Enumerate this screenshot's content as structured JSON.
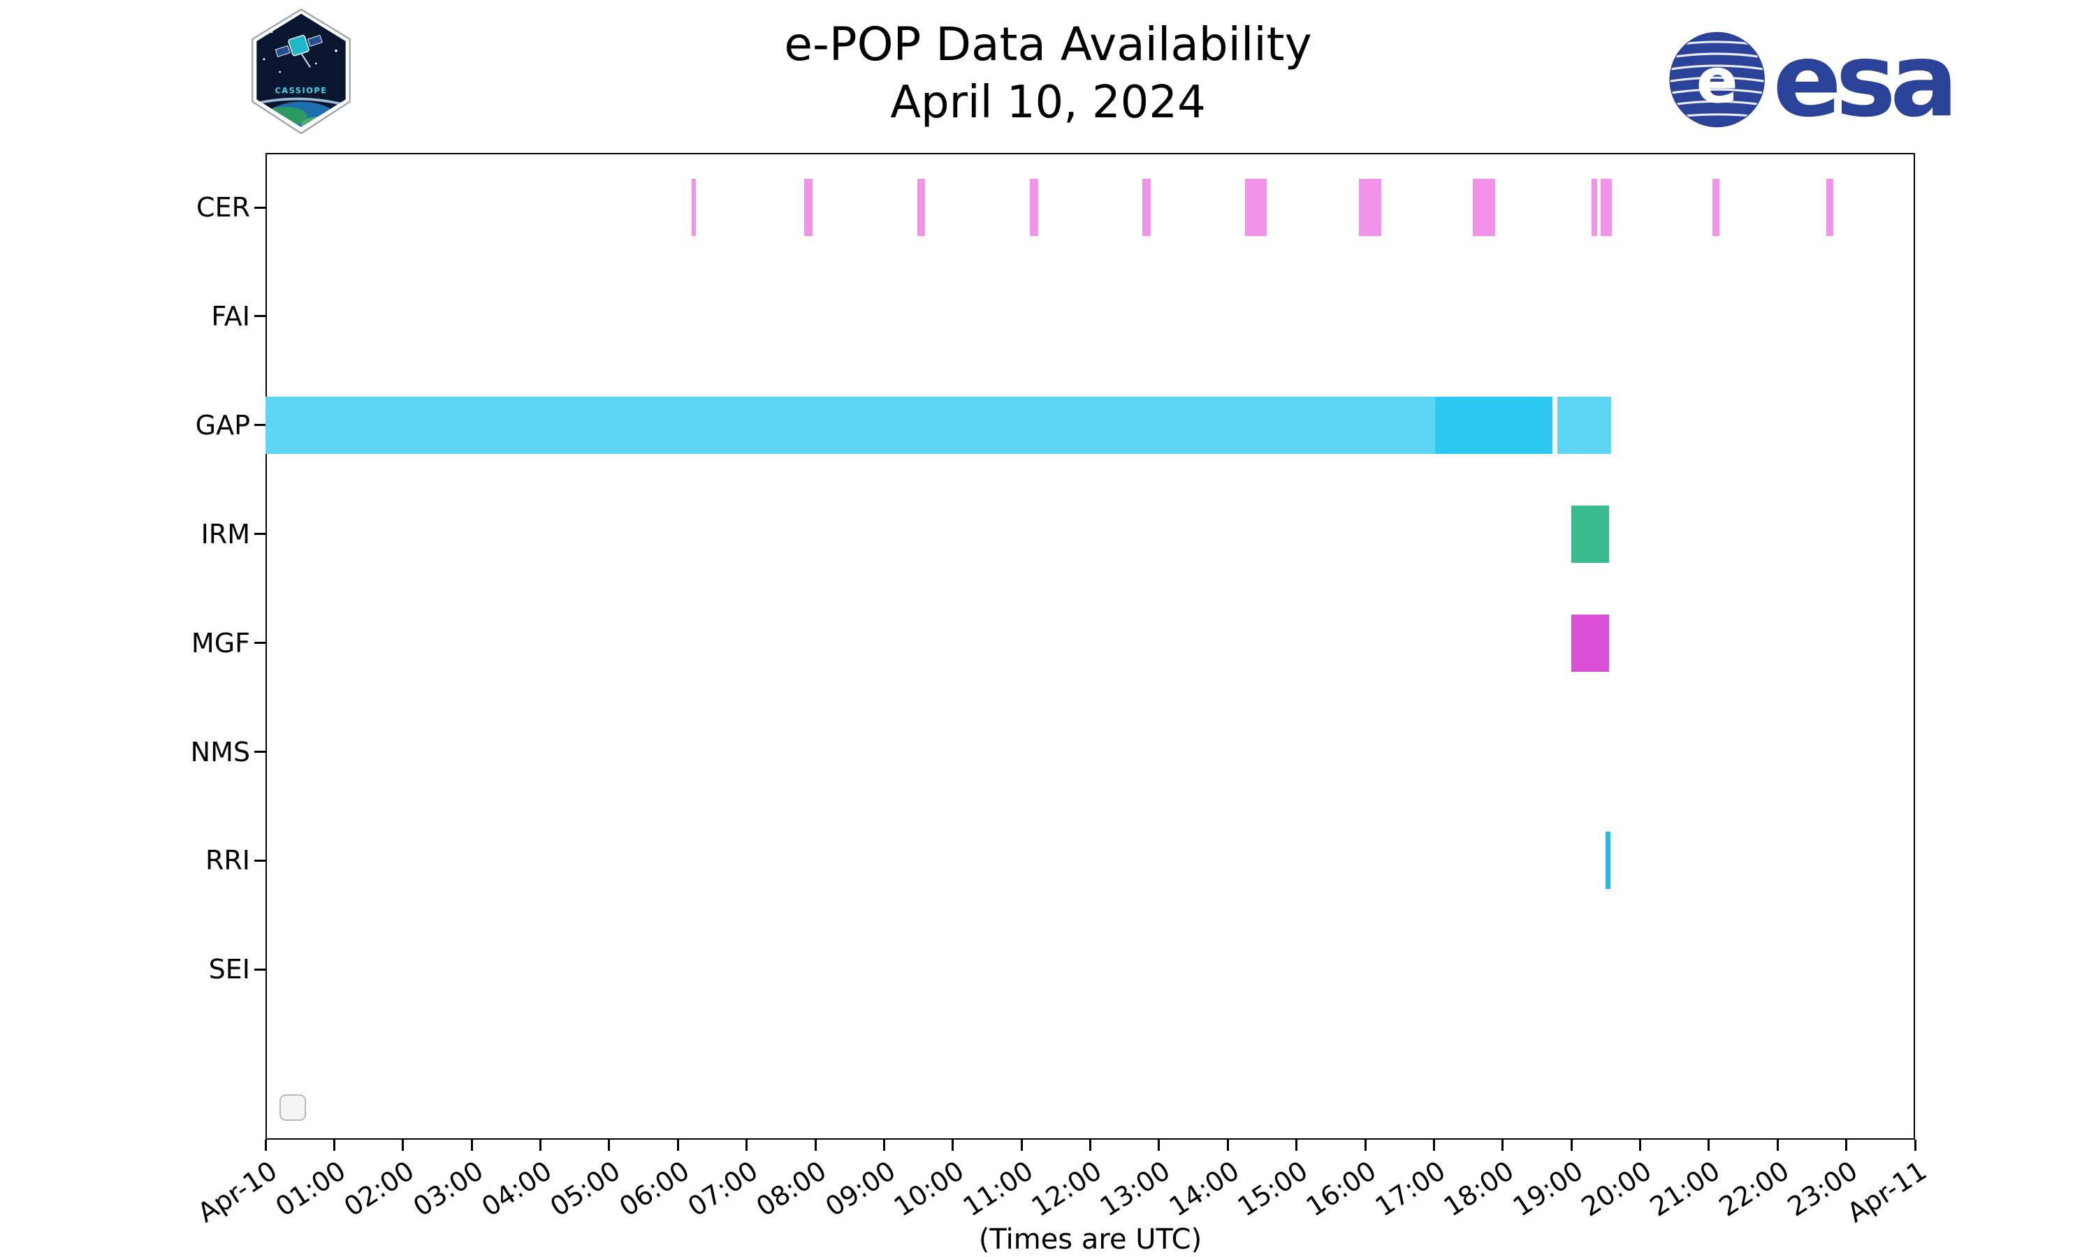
{
  "logos": {
    "cassiope_text": "CASSIOPE",
    "esa_text": "esa",
    "esa_emblem_letter": "e"
  },
  "chart_data": {
    "type": "timeline",
    "title": "e-POP Data Availability",
    "subtitle": "April 10, 2024",
    "xlabel": "(Times are UTC)",
    "x_axis": {
      "start_label": "Apr-10",
      "end_label": "Apr-11",
      "hours": 24,
      "tick_labels": [
        "Apr-10",
        "01:00",
        "02:00",
        "03:00",
        "04:00",
        "05:00",
        "06:00",
        "07:00",
        "08:00",
        "09:00",
        "10:00",
        "11:00",
        "12:00",
        "13:00",
        "14:00",
        "15:00",
        "16:00",
        "17:00",
        "18:00",
        "19:00",
        "20:00",
        "21:00",
        "22:00",
        "23:00",
        "Apr-11"
      ]
    },
    "rows": [
      "CER",
      "FAI",
      "GAP",
      "IRM",
      "MGF",
      "NMS",
      "RRI",
      "SEI"
    ],
    "colors": {
      "CER": "#f193e9",
      "GAP_light": "#5dd5f4",
      "GAP_dark": "#2cc8f0",
      "IRM": "#3abb8d",
      "MGF": "#d94fd6",
      "RRI": "#29b7e8"
    },
    "series": [
      {
        "row": "CER",
        "color_key": "CER",
        "intervals_hours": [
          [
            6.2,
            6.26
          ],
          [
            7.84,
            7.96
          ],
          [
            9.48,
            9.6
          ],
          [
            11.12,
            11.24
          ],
          [
            12.76,
            12.88
          ],
          [
            14.25,
            14.57
          ],
          [
            15.91,
            16.23
          ],
          [
            17.57,
            17.89
          ],
          [
            19.29,
            19.37
          ],
          [
            19.43,
            19.59
          ],
          [
            21.05,
            21.15
          ],
          [
            22.71,
            22.81
          ]
        ]
      },
      {
        "row": "FAI",
        "color_key": "CER",
        "intervals_hours": []
      },
      {
        "row": "GAP",
        "color_key": "GAP_light",
        "intervals_hours": [
          [
            0.0,
            17.02
          ],
          [
            18.8,
            19.58
          ]
        ]
      },
      {
        "row": "GAP",
        "color_key": "GAP_dark",
        "intervals_hours": [
          [
            17.02,
            18.72
          ]
        ]
      },
      {
        "row": "IRM",
        "color_key": "IRM",
        "intervals_hours": [
          [
            19.0,
            19.55
          ]
        ]
      },
      {
        "row": "MGF",
        "color_key": "MGF",
        "intervals_hours": [
          [
            19.0,
            19.55
          ]
        ]
      },
      {
        "row": "NMS",
        "color_key": "CER",
        "intervals_hours": []
      },
      {
        "row": "RRI",
        "color_key": "RRI",
        "intervals_hours": [
          [
            19.5,
            19.57
          ]
        ]
      },
      {
        "row": "SEI",
        "color_key": "CER",
        "intervals_hours": []
      }
    ]
  }
}
